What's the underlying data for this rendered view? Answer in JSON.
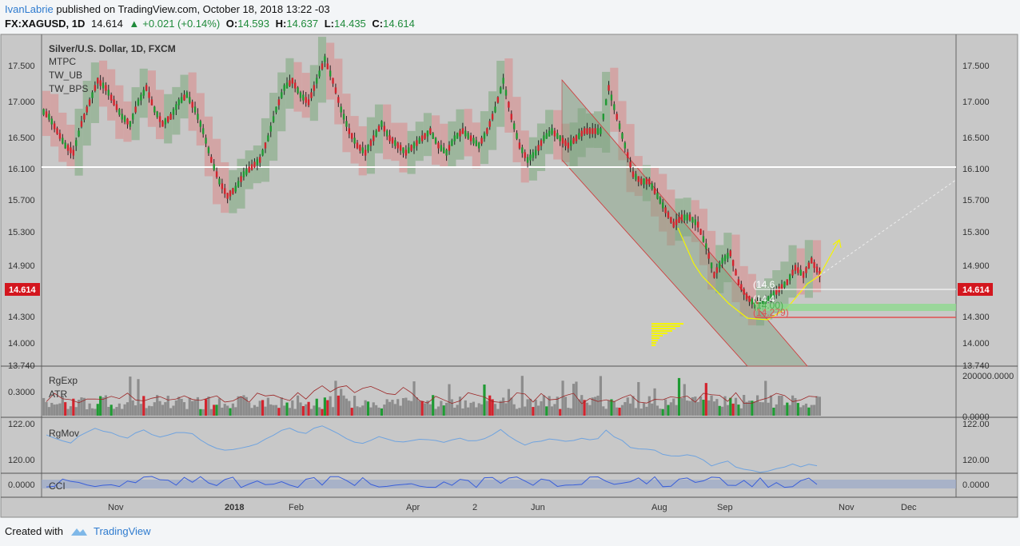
{
  "header": {
    "author": "IvanLabrie",
    "published_text": "published on TradingView.com, October 18, 2018 13:22 -03",
    "symbol": "FX:XAGUSD, 1D",
    "last": "14.614",
    "change": "+0.021 (+0.14%)",
    "o_label": "O:",
    "o_value": "14.593",
    "h_label": "H:",
    "h_value": "14.637",
    "l_label": "L:",
    "l_value": "14.435",
    "c_label": "C:",
    "c_value": "14.614"
  },
  "footer": {
    "created_with": "Created with",
    "brand": "TradingView"
  },
  "colors": {
    "panel_bg": "#c8c8c8",
    "page_bg": "#f3f5f7",
    "up": "#1f9a33",
    "down": "#d3232d",
    "up_box": "#8fb08f",
    "down_box": "#d69a9a",
    "yellow": "#f5f500",
    "price_badge": "#d3161e",
    "rgmov_line": "#6fa3df",
    "cci_line": "#3a5fd9",
    "atr_line": "#9c2525"
  },
  "chart_data": {
    "type": "candlestick",
    "title": "Silver/U.S. Dollar, 1D, FXCM",
    "indicators_legend": [
      "MTPC",
      "TW_UB",
      "TW_BPS"
    ],
    "price_axis": {
      "ticks": [
        "17.500",
        "17.000",
        "16.500",
        "16.100",
        "15.700",
        "15.300",
        "14.900",
        "14.300",
        "14.000",
        "13.740"
      ],
      "range": [
        13.74,
        17.75
      ]
    },
    "current_price": "14.614",
    "support_line": 16.1,
    "x_ticks": [
      "Nov",
      "2018",
      "Feb",
      "Apr",
      "2",
      "Jun",
      "Aug",
      "Sep",
      "Nov",
      "Dec"
    ],
    "channel_labels": [
      "(14.6",
      "(14.4",
      "(14.279)",
      "(14.00)"
    ],
    "close_series": [
      16.8,
      16.6,
      16.4,
      16.3,
      16.7,
      17.0,
      17.3,
      17.2,
      17.0,
      16.8,
      16.7,
      17.0,
      17.2,
      16.9,
      16.7,
      16.8,
      17.0,
      17.1,
      16.9,
      16.6,
      16.2,
      15.9,
      15.7,
      15.8,
      16.0,
      16.1,
      16.2,
      16.5,
      16.9,
      17.2,
      17.3,
      17.1,
      17.0,
      17.3,
      17.6,
      17.3,
      16.9,
      16.6,
      16.4,
      16.3,
      16.5,
      16.7,
      16.5,
      16.4,
      16.3,
      16.4,
      16.5,
      16.6,
      16.4,
      16.3,
      16.5,
      16.6,
      16.5,
      16.4,
      16.6,
      16.9,
      17.3,
      16.8,
      16.4,
      16.2,
      16.3,
      16.5,
      16.6,
      16.5,
      16.4,
      16.5,
      16.6,
      16.6,
      16.6,
      17.2,
      16.8,
      16.4,
      16.0,
      15.9,
      15.9,
      15.7,
      15.5,
      15.3,
      15.4,
      15.4,
      15.3,
      15.0,
      14.6,
      14.8,
      14.9,
      14.5,
      14.3,
      14.2,
      14.2,
      14.3,
      14.4,
      14.5,
      14.7,
      14.6,
      14.8,
      14.614
    ],
    "volume_label": "RgExp",
    "volume_axis": [
      "200000.0000",
      "0.0000"
    ],
    "atr_label": "ATR",
    "atr_axis": [
      "0.3000"
    ],
    "rgmov": {
      "label": "RgMov",
      "axis": [
        "122.00",
        "120.00"
      ]
    },
    "cci": {
      "label": "CCI",
      "axis": [
        "0.0000"
      ]
    }
  }
}
